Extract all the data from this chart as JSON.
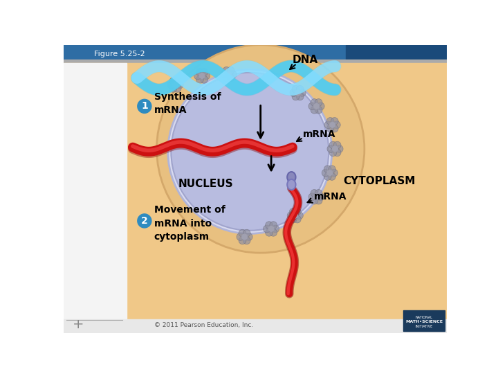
{
  "text_figure": "Figure 5.25-2",
  "text_dna": "DNA",
  "text_mrna": "mRNA",
  "text_nucleus": "NUCLEUS",
  "text_cytoplasm": "CYTOPLASM",
  "text_step1": "Synthesis of\nmRNA",
  "text_step2": "Movement of\nmRNA into\ncytoplasm",
  "text_copyright": "© 2011 Pearson Education, Inc.",
  "banner_color": "#2e6da4",
  "banner_right_color": "#1a4a7a",
  "sidebar_color": "#f0f0f0",
  "main_bg": "#f5c98a",
  "cell_fill": "#e8c080",
  "cell_edge": "#d4a86a",
  "nucleus_fill": "#b8bce0",
  "nucleus_edge": "#9090b8",
  "nuclear_membrane": "#d0d4ec",
  "nuclear_pore": "#8888aa",
  "dna_strand1": "#55ccee",
  "dna_strand2": "#88ddff",
  "mrna_red": "#cc1111",
  "mrna_red2": "#dd4444",
  "granule_color": "#a09080",
  "badge_color": "#2e8bc0",
  "bottom_strip": "#c8c8c8",
  "logo_bg": "#1a3a5c"
}
